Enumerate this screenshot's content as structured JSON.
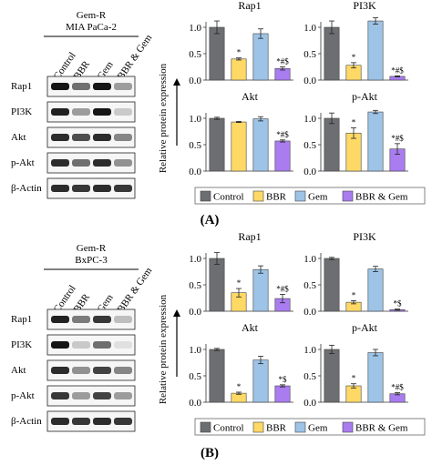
{
  "panels": [
    {
      "id": "A",
      "panel_label": "(A)",
      "cell_line": [
        "Gem-R",
        "MIA PaCa-2"
      ],
      "blot_columns": [
        "Control",
        "BBR",
        "Gem",
        "BBR & Gem"
      ],
      "blot_rows": [
        "Rap1",
        "PI3K",
        "Akt",
        "p-Akt",
        "β-Actin"
      ]
    },
    {
      "id": "B",
      "panel_label": "(B)",
      "cell_line": [
        "Gem-R",
        "BxPC-3"
      ],
      "blot_columns": [
        "Control",
        "BBR",
        "Gem",
        "BBR & Gem"
      ],
      "blot_rows": [
        "Rap1",
        "PI3K",
        "Akt",
        "p-Akt",
        "β-Actin"
      ]
    }
  ],
  "colors": {
    "Control": "#6d6e71",
    "BBR": "#ffd966",
    "Gem": "#9dc3e6",
    "BBR & Gem": "#a97cf0"
  },
  "ylabel": "Relative protein expression",
  "chart_data": [
    {
      "type": "bar",
      "panel": "A",
      "title": "Rap1",
      "categories": [
        "Control",
        "BBR",
        "Gem",
        "BBR & Gem"
      ],
      "values": [
        1.0,
        0.4,
        0.88,
        0.22
      ],
      "errors": [
        0.12,
        0.02,
        0.09,
        0.03
      ],
      "annotations": [
        "",
        "*",
        "",
        "*#$"
      ],
      "ylim": [
        0,
        1.0
      ],
      "yticks": [
        "0.0",
        "0.5",
        "1.0"
      ]
    },
    {
      "type": "bar",
      "panel": "A",
      "title": "PI3K",
      "categories": [
        "Control",
        "BBR",
        "Gem",
        "BBR & Gem"
      ],
      "values": [
        1.0,
        0.28,
        1.12,
        0.07
      ],
      "errors": [
        0.12,
        0.05,
        0.06,
        0.01
      ],
      "annotations": [
        "",
        "*",
        "",
        "*#$"
      ],
      "ylim": [
        0,
        1.0
      ],
      "yticks": [
        "0.0",
        "0.5",
        "1.0"
      ]
    },
    {
      "type": "bar",
      "panel": "A",
      "title": "Akt",
      "categories": [
        "Control",
        "BBR",
        "Gem",
        "BBR & Gem"
      ],
      "values": [
        1.0,
        0.93,
        0.99,
        0.57
      ],
      "errors": [
        0.02,
        0.01,
        0.04,
        0.02
      ],
      "annotations": [
        "",
        "",
        "",
        "*#$"
      ],
      "ylim": [
        0,
        1.0
      ],
      "yticks": [
        "0.0",
        "0.5",
        "1.0"
      ]
    },
    {
      "type": "bar",
      "panel": "A",
      "title": "p-Akt",
      "categories": [
        "Control",
        "BBR",
        "Gem",
        "BBR & Gem"
      ],
      "values": [
        1.0,
        0.72,
        1.12,
        0.42
      ],
      "errors": [
        0.1,
        0.1,
        0.03,
        0.1
      ],
      "annotations": [
        "",
        "*",
        "",
        "*#$"
      ],
      "ylim": [
        0,
        1.0
      ],
      "yticks": [
        "0.0",
        "0.5",
        "1.0"
      ]
    },
    {
      "type": "bar",
      "panel": "B",
      "title": "Rap1",
      "categories": [
        "Control",
        "BBR",
        "Gem",
        "BBR & Gem"
      ],
      "values": [
        1.0,
        0.35,
        0.79,
        0.24
      ],
      "errors": [
        0.11,
        0.08,
        0.07,
        0.08
      ],
      "annotations": [
        "",
        "*",
        "",
        "*#$"
      ],
      "ylim": [
        0,
        1.0
      ],
      "yticks": [
        "0.0",
        "0.5",
        "1.0"
      ]
    },
    {
      "type": "bar",
      "panel": "B",
      "title": "PI3K",
      "categories": [
        "Control",
        "BBR",
        "Gem",
        "BBR & Gem"
      ],
      "values": [
        1.0,
        0.17,
        0.8,
        0.03
      ],
      "errors": [
        0.02,
        0.03,
        0.05,
        0.01
      ],
      "annotations": [
        "",
        "*",
        "",
        "*$"
      ],
      "ylim": [
        0,
        1.0
      ],
      "yticks": [
        "0.0",
        "0.5",
        "1.0"
      ]
    },
    {
      "type": "bar",
      "panel": "B",
      "title": "Akt",
      "categories": [
        "Control",
        "BBR",
        "Gem",
        "BBR & Gem"
      ],
      "values": [
        1.0,
        0.17,
        0.8,
        0.31
      ],
      "errors": [
        0.02,
        0.02,
        0.07,
        0.02
      ],
      "annotations": [
        "",
        "*",
        "",
        "*$"
      ],
      "ylim": [
        0,
        1.0
      ],
      "yticks": [
        "0.0",
        "0.5",
        "1.0"
      ]
    },
    {
      "type": "bar",
      "panel": "B",
      "title": "p-Akt",
      "categories": [
        "Control",
        "BBR",
        "Gem",
        "BBR & Gem"
      ],
      "values": [
        1.0,
        0.31,
        0.94,
        0.16
      ],
      "errors": [
        0.08,
        0.04,
        0.06,
        0.02
      ],
      "annotations": [
        "",
        "*",
        "",
        "*#$"
      ],
      "ylim": [
        0,
        1.0
      ],
      "yticks": [
        "0.0",
        "0.5",
        "1.0"
      ]
    }
  ]
}
